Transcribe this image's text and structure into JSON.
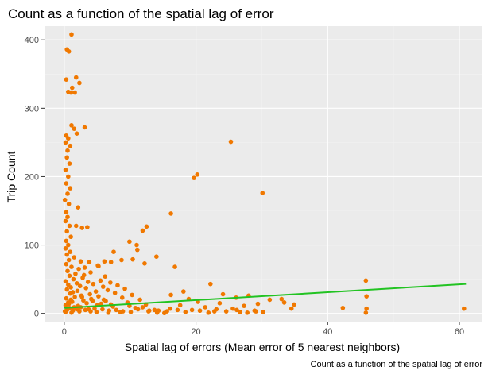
{
  "chart_data": {
    "type": "scatter",
    "title": "Count as a function of the spatial lag of error",
    "xlabel": "Spatial lag of errors (Mean error of 5 nearest neighbors)",
    "ylabel": "Trip Count",
    "caption": "Count as a function of the spatial lag of error",
    "xlim": [
      -3.0,
      63.5
    ],
    "ylim": [
      -12,
      420
    ],
    "x_ticks": [
      0,
      20,
      40,
      60
    ],
    "x_tick_labels": [
      "0",
      "20",
      "40",
      "60"
    ],
    "y_ticks": [
      0,
      100,
      200,
      300,
      400
    ],
    "y_tick_labels": [
      "0",
      "100",
      "200",
      "300",
      "400"
    ],
    "grid": true,
    "legend": "none",
    "colors": {
      "panel_background": "#ebebeb",
      "grid_major": "#ffffff",
      "grid_minor": "#f2f2f2",
      "points": "#f07800",
      "trend_line": "#22c322"
    },
    "points": [
      [
        1.1,
        408
      ],
      [
        0.4,
        386
      ],
      [
        0.7,
        383
      ],
      [
        1.8,
        345
      ],
      [
        2.3,
        337
      ],
      [
        0.3,
        342
      ],
      [
        1.2,
        330
      ],
      [
        0.6,
        324
      ],
      [
        1.6,
        323
      ],
      [
        1.0,
        323
      ],
      [
        1.1,
        275
      ],
      [
        3.1,
        272
      ],
      [
        1.5,
        270
      ],
      [
        1.9,
        263
      ],
      [
        0.3,
        260
      ],
      [
        0.6,
        256
      ],
      [
        0.2,
        250
      ],
      [
        0.9,
        245
      ],
      [
        0.5,
        238
      ],
      [
        0.4,
        228
      ],
      [
        0.8,
        219
      ],
      [
        0.2,
        210
      ],
      [
        0.6,
        200
      ],
      [
        0.3,
        190
      ],
      [
        0.9,
        183
      ],
      [
        0.5,
        175
      ],
      [
        0.1,
        166
      ],
      [
        0.7,
        160
      ],
      [
        2.1,
        155
      ],
      [
        0.3,
        148
      ],
      [
        0.5,
        141
      ],
      [
        0.2,
        135
      ],
      [
        0.8,
        128
      ],
      [
        0.4,
        120
      ],
      [
        1.0,
        112
      ],
      [
        0.3,
        106
      ],
      [
        0.6,
        100
      ],
      [
        3.5,
        126
      ],
      [
        1.8,
        128
      ],
      [
        2.7,
        125
      ],
      [
        0.2,
        95
      ],
      [
        0.9,
        90
      ],
      [
        0.4,
        86
      ],
      [
        1.5,
        82
      ],
      [
        0.7,
        78
      ],
      [
        2.5,
        76
      ],
      [
        3.8,
        75
      ],
      [
        0.3,
        72
      ],
      [
        5.1,
        70
      ],
      [
        1.1,
        68
      ],
      [
        2.2,
        65
      ],
      [
        0.5,
        62
      ],
      [
        4.0,
        60
      ],
      [
        1.7,
        58
      ],
      [
        3.0,
        56
      ],
      [
        0.8,
        55
      ],
      [
        6.2,
        54
      ],
      [
        2.8,
        52
      ],
      [
        1.4,
        50
      ],
      [
        5.5,
        48
      ],
      [
        0.2,
        47
      ],
      [
        3.6,
        46
      ],
      [
        7.0,
        45
      ],
      [
        1.9,
        44
      ],
      [
        4.4,
        43
      ],
      [
        0.6,
        42
      ],
      [
        8.1,
        41
      ],
      [
        2.4,
        40
      ],
      [
        5.9,
        39
      ],
      [
        1.0,
        38
      ],
      [
        3.3,
        37
      ],
      [
        9.2,
        36
      ],
      [
        0.4,
        35
      ],
      [
        6.6,
        34
      ],
      [
        2.0,
        33
      ],
      [
        4.8,
        32
      ],
      [
        1.3,
        31
      ],
      [
        7.7,
        30
      ],
      [
        0.9,
        29
      ],
      [
        3.9,
        28
      ],
      [
        10.3,
        27
      ],
      [
        2.6,
        26
      ],
      [
        5.2,
        25
      ],
      [
        1.6,
        24
      ],
      [
        8.8,
        23
      ],
      [
        0.3,
        22
      ],
      [
        4.1,
        21
      ],
      [
        11.5,
        20
      ],
      [
        2.9,
        19
      ],
      [
        6.3,
        18
      ],
      [
        1.2,
        17
      ],
      [
        9.6,
        16
      ],
      [
        3.4,
        15
      ],
      [
        0.7,
        14
      ],
      [
        12.4,
        13
      ],
      [
        5.0,
        12
      ],
      [
        2.1,
        11
      ],
      [
        7.4,
        10
      ],
      [
        1.5,
        9
      ],
      [
        10.8,
        8
      ],
      [
        4.6,
        7
      ],
      [
        0.5,
        6
      ],
      [
        13.7,
        5
      ],
      [
        6.8,
        4
      ],
      [
        2.3,
        3
      ],
      [
        8.5,
        2
      ],
      [
        1.1,
        1
      ],
      [
        15.2,
        0.5
      ],
      [
        3.7,
        6
      ],
      [
        11.9,
        9
      ],
      [
        0.2,
        2
      ],
      [
        5.6,
        14
      ],
      [
        14.3,
        4
      ],
      [
        9.9,
        11
      ],
      [
        4.3,
        18
      ],
      [
        16.1,
        7
      ],
      [
        7.1,
        13
      ],
      [
        2.7,
        24
      ],
      [
        12.8,
        3
      ],
      [
        6.0,
        20
      ],
      [
        11.9,
        121
      ],
      [
        12.5,
        127
      ],
      [
        9.9,
        105
      ],
      [
        11.1,
        93
      ],
      [
        11.0,
        100
      ],
      [
        7.1,
        75
      ],
      [
        6.1,
        76
      ],
      [
        5.2,
        69
      ],
      [
        8.7,
        78
      ],
      [
        3.1,
        67
      ],
      [
        12.2,
        73
      ],
      [
        10.4,
        79
      ],
      [
        14.0,
        83
      ],
      [
        7.5,
        90
      ],
      [
        16.2,
        146
      ],
      [
        20.2,
        203
      ],
      [
        19.7,
        198
      ],
      [
        30.1,
        176
      ],
      [
        25.3,
        251
      ],
      [
        16.8,
        68
      ],
      [
        18.1,
        32
      ],
      [
        16.2,
        27
      ],
      [
        26.1,
        23
      ],
      [
        28.0,
        26
      ],
      [
        22.2,
        43
      ],
      [
        18.9,
        21
      ],
      [
        17.6,
        12
      ],
      [
        20.3,
        17
      ],
      [
        24.1,
        28
      ],
      [
        21.4,
        9
      ],
      [
        23.6,
        15
      ],
      [
        27.3,
        11
      ],
      [
        19.4,
        5
      ],
      [
        22.8,
        3
      ],
      [
        25.6,
        7
      ],
      [
        28.9,
        4
      ],
      [
        29.4,
        14
      ],
      [
        26.7,
        2
      ],
      [
        31.2,
        20
      ],
      [
        34.9,
        13
      ],
      [
        33.0,
        21
      ],
      [
        33.4,
        16
      ],
      [
        34.5,
        7
      ],
      [
        42.3,
        8
      ],
      [
        45.8,
        48
      ],
      [
        45.9,
        25
      ],
      [
        45.9,
        7
      ],
      [
        45.8,
        1
      ],
      [
        60.7,
        7
      ],
      [
        30.2,
        2
      ],
      [
        0.1,
        3
      ],
      [
        0.4,
        5
      ],
      [
        0.8,
        8
      ],
      [
        1.3,
        4
      ],
      [
        1.9,
        6
      ],
      [
        2.5,
        9
      ],
      [
        3.2,
        5
      ],
      [
        4.0,
        3
      ],
      [
        4.9,
        2
      ],
      [
        5.8,
        6
      ],
      [
        6.7,
        1
      ],
      [
        7.9,
        5
      ],
      [
        8.9,
        3
      ],
      [
        10.1,
        2
      ],
      [
        11.2,
        6
      ],
      [
        12.9,
        4
      ],
      [
        14.1,
        1
      ],
      [
        15.6,
        3
      ],
      [
        17.2,
        5
      ],
      [
        18.4,
        2
      ],
      [
        20.6,
        4
      ],
      [
        21.9,
        1
      ],
      [
        23.1,
        6
      ],
      [
        24.6,
        3
      ],
      [
        26.2,
        5
      ],
      [
        27.8,
        1
      ],
      [
        29.1,
        3
      ],
      [
        0.2,
        12
      ],
      [
        0.6,
        16
      ],
      [
        1.0,
        20
      ]
    ],
    "trend_line": {
      "x": [
        0.0,
        61.0
      ],
      "y": [
        8,
        43
      ]
    }
  }
}
